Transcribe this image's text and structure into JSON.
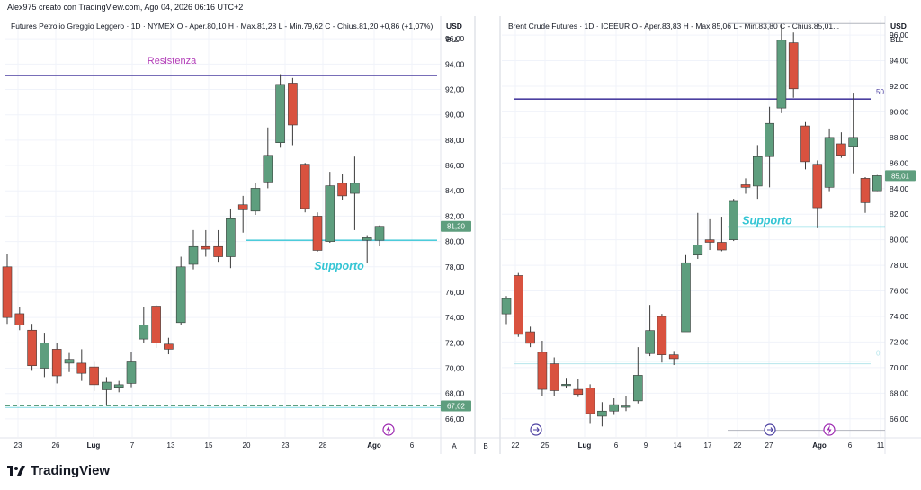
{
  "header": {
    "text": "Alex975 creato con TradingView.com, Ago 04, 2026 06:16 UTC+2"
  },
  "footer": {
    "brand": "TradingView",
    "pane_letters": [
      "A",
      "B"
    ]
  },
  "colors": {
    "up": "#5e9e7e",
    "down": "#d9523f",
    "resistance": "#4b3fa0",
    "support": "#33c5d4",
    "label_res": "#b23db8",
    "grid": "#f0f3fa"
  },
  "chart_data": [
    {
      "type": "candlestick",
      "legend": "Futures Petrolio Greggio Leggero · 1D · NYMEX  O - Aper.80,10  H - Max.81,28  L - Min.79,62  C - Chius.81,20  +0,86 (+1,07%)",
      "currency": "USD",
      "unit": "BLL",
      "ylim": [
        65,
        97.5
      ],
      "y_ticks": [
        "66,00",
        "68,00",
        "70,00",
        "72,00",
        "74,00",
        "76,00",
        "78,00",
        "80,00",
        "82,00",
        "84,00",
        "86,00",
        "88,00",
        "90,00",
        "92,00",
        "94,00",
        "96,00"
      ],
      "x_ticks": [
        "23",
        "26",
        "Lug",
        "7",
        "13",
        "15",
        "20",
        "23",
        "28",
        "Ago",
        "6"
      ],
      "price_badges": [
        {
          "label": "81,20",
          "value": 81.2,
          "color": "#5e9e7e"
        },
        {
          "label": "67,02",
          "value": 67.02,
          "color": "#5e9e7e"
        }
      ],
      "annotations": [
        {
          "text": "Resistenza",
          "value": 93.1,
          "kind": "resistance"
        },
        {
          "text": "Supporto",
          "value": 80.1,
          "kind": "support"
        }
      ],
      "candles": [
        {
          "o": 78,
          "h": 79,
          "l": 73.5,
          "c": 74
        },
        {
          "o": 74.3,
          "h": 74.8,
          "l": 73,
          "c": 73.4
        },
        {
          "o": 73,
          "h": 73.5,
          "l": 69.8,
          "c": 70.2
        },
        {
          "o": 70,
          "h": 72.8,
          "l": 69.3,
          "c": 72
        },
        {
          "o": 71.5,
          "h": 72,
          "l": 68.8,
          "c": 69.4
        },
        {
          "o": 70.4,
          "h": 71.2,
          "l": 69.7,
          "c": 70.7
        },
        {
          "o": 70.4,
          "h": 71.5,
          "l": 69,
          "c": 69.6
        },
        {
          "o": 70.1,
          "h": 70.5,
          "l": 68.2,
          "c": 68.7
        },
        {
          "o": 68.3,
          "h": 69.3,
          "l": 67.1,
          "c": 68.9
        },
        {
          "o": 68.5,
          "h": 69,
          "l": 68.1,
          "c": 68.7
        },
        {
          "o": 68.8,
          "h": 71.3,
          "l": 68.5,
          "c": 70.5
        },
        {
          "o": 72.3,
          "h": 74.8,
          "l": 72,
          "c": 73.4
        },
        {
          "o": 74.9,
          "h": 75,
          "l": 71.6,
          "c": 72
        },
        {
          "o": 71.9,
          "h": 72.4,
          "l": 71.1,
          "c": 71.5
        },
        {
          "o": 73.6,
          "h": 78.8,
          "l": 73.4,
          "c": 78
        },
        {
          "o": 78.2,
          "h": 80.9,
          "l": 77.8,
          "c": 79.6
        },
        {
          "o": 79.6,
          "h": 80.9,
          "l": 78.8,
          "c": 79.4
        },
        {
          "o": 79.6,
          "h": 80.9,
          "l": 78.4,
          "c": 78.8
        },
        {
          "o": 78.8,
          "h": 82.6,
          "l": 77.9,
          "c": 81.8
        },
        {
          "o": 82.9,
          "h": 83.6,
          "l": 80.7,
          "c": 82.5
        },
        {
          "o": 82.4,
          "h": 84.6,
          "l": 82.1,
          "c": 84.2
        },
        {
          "o": 84.7,
          "h": 89,
          "l": 84.2,
          "c": 86.8
        },
        {
          "o": 87.8,
          "h": 93.2,
          "l": 87.4,
          "c": 92.4
        },
        {
          "o": 92.5,
          "h": 92.9,
          "l": 87.6,
          "c": 89.2
        },
        {
          "o": 86.1,
          "h": 86.2,
          "l": 82.3,
          "c": 82.6
        },
        {
          "o": 82,
          "h": 82.3,
          "l": 79.2,
          "c": 79.3
        },
        {
          "o": 80,
          "h": 85.5,
          "l": 79.9,
          "c": 84.4
        },
        {
          "o": 84.6,
          "h": 85.3,
          "l": 83.3,
          "c": 83.6
        },
        {
          "o": 83.8,
          "h": 86.7,
          "l": 80.9,
          "c": 84.6
        },
        {
          "o": 80.1,
          "h": 80.5,
          "l": 78.3,
          "c": 80.3
        },
        {
          "o": 80.1,
          "h": 81.28,
          "l": 79.62,
          "c": 81.2
        }
      ]
    },
    {
      "type": "candlestick",
      "legend": "Brent Crude Futures · 1D · ICEEUR  O - Aper.83,83  H - Max.85,06  L - Min.83,80  C - Chius.85,01...",
      "currency": "USD",
      "unit": "BLL",
      "ylim": [
        65,
        97.2
      ],
      "y_ticks": [
        "66,00",
        "68,00",
        "70,00",
        "72,00",
        "74,00",
        "76,00",
        "78,00",
        "80,00",
        "82,00",
        "84,00",
        "86,00",
        "88,00",
        "90,00",
        "92,00",
        "94,00",
        "96,00"
      ],
      "x_ticks": [
        "22",
        "25",
        "Lug",
        "6",
        "9",
        "14",
        "17",
        "22",
        "27",
        "Ago",
        "6",
        "11"
      ],
      "price_badges": [
        {
          "label": "85,01",
          "value": 85.01,
          "color": "#5e9e7e"
        }
      ],
      "edge_labels": [
        "50",
        "0"
      ],
      "annotations": [
        {
          "text": "Supporto",
          "value": 81.0,
          "kind": "support"
        }
      ],
      "candles": [
        {
          "o": 74.2,
          "h": 75.6,
          "l": 73.4,
          "c": 75.4
        },
        {
          "o": 77.2,
          "h": 77.4,
          "l": 72.4,
          "c": 72.6
        },
        {
          "o": 72.8,
          "h": 73.2,
          "l": 71.6,
          "c": 71.9
        },
        {
          "o": 71.2,
          "h": 72.1,
          "l": 67.8,
          "c": 68.3
        },
        {
          "o": 70.3,
          "h": 70.8,
          "l": 67.8,
          "c": 68.2
        },
        {
          "o": 68.6,
          "h": 69.2,
          "l": 68.4,
          "c": 68.7
        },
        {
          "o": 68.3,
          "h": 69.1,
          "l": 67.7,
          "c": 67.9
        },
        {
          "o": 68.4,
          "h": 68.7,
          "l": 65.6,
          "c": 66.4
        },
        {
          "o": 66.2,
          "h": 67.3,
          "l": 65.4,
          "c": 66.6
        },
        {
          "o": 66.6,
          "h": 67.6,
          "l": 66.3,
          "c": 67.1
        },
        {
          "o": 66.9,
          "h": 67.8,
          "l": 66.6,
          "c": 67
        },
        {
          "o": 67.4,
          "h": 71.6,
          "l": 67.2,
          "c": 69.4
        },
        {
          "o": 71.1,
          "h": 74.9,
          "l": 70.9,
          "c": 72.9
        },
        {
          "o": 74,
          "h": 74.2,
          "l": 70.4,
          "c": 71
        },
        {
          "o": 71,
          "h": 71.3,
          "l": 70.2,
          "c": 70.7
        },
        {
          "o": 72.8,
          "h": 78.8,
          "l": 72.8,
          "c": 78.2
        },
        {
          "o": 78.8,
          "h": 82.1,
          "l": 78.5,
          "c": 79.6
        },
        {
          "o": 80,
          "h": 81.6,
          "l": 79.2,
          "c": 79.8
        },
        {
          "o": 79.8,
          "h": 81.8,
          "l": 79.1,
          "c": 79.2
        },
        {
          "o": 80,
          "h": 83.2,
          "l": 79.9,
          "c": 83
        },
        {
          "o": 84.3,
          "h": 84.8,
          "l": 83.6,
          "c": 84.1
        },
        {
          "o": 84.2,
          "h": 87.4,
          "l": 83.2,
          "c": 86.5
        },
        {
          "o": 86.5,
          "h": 90.4,
          "l": 84.1,
          "c": 89.1
        },
        {
          "o": 90.3,
          "h": 96.8,
          "l": 89.9,
          "c": 95.6
        },
        {
          "o": 95.4,
          "h": 96.2,
          "l": 91.1,
          "c": 91.8
        },
        {
          "o": 88.9,
          "h": 89.2,
          "l": 85.5,
          "c": 86.1
        },
        {
          "o": 85.9,
          "h": 86.2,
          "l": 80.9,
          "c": 82.5
        },
        {
          "o": 84.1,
          "h": 88.7,
          "l": 83.8,
          "c": 88
        },
        {
          "o": 87.5,
          "h": 88.4,
          "l": 86.4,
          "c": 86.6
        },
        {
          "o": 87.3,
          "h": 91.5,
          "l": 85.2,
          "c": 88
        },
        {
          "o": 84.8,
          "h": 84.9,
          "l": 82.1,
          "c": 82.9
        },
        {
          "o": 83.83,
          "h": 85.06,
          "l": 83.8,
          "c": 85.01
        }
      ]
    }
  ]
}
